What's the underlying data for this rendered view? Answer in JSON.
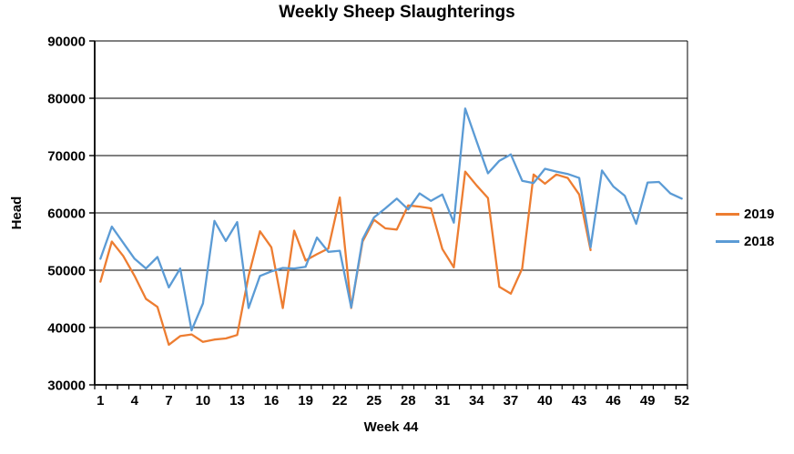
{
  "title": "Weekly Sheep Slaughterings",
  "chart_data": {
    "type": "line",
    "title": "Weekly Sheep Slaughterings",
    "xlabel": "Week 44",
    "ylabel": "Head",
    "x_unit": "week number",
    "x_range": [
      1,
      52
    ],
    "ylim": [
      30000,
      90000
    ],
    "ytick_step": 10000,
    "yticks": [
      90000,
      80000,
      70000,
      60000,
      50000,
      40000,
      30000
    ],
    "xticks": [
      1,
      4,
      7,
      10,
      13,
      16,
      19,
      22,
      25,
      28,
      31,
      34,
      37,
      40,
      43,
      46,
      49,
      52
    ],
    "grid": true,
    "legend_position": "right",
    "series": [
      {
        "name": "2019",
        "color": "#ED7D31",
        "start_week": 1,
        "values": [
          48000,
          55000,
          52500,
          49000,
          45000,
          43600,
          37000,
          38500,
          38800,
          37500,
          37900,
          38100,
          38700,
          49000,
          56800,
          54000,
          43400,
          56900,
          51700,
          52800,
          53800,
          62700,
          43400,
          55000,
          58800,
          57300,
          57100,
          61300,
          61100,
          60800,
          53700,
          50500,
          67200,
          64800,
          62600,
          47100,
          45900,
          50300,
          66700,
          65100,
          66700,
          66100,
          63200,
          53500
        ]
      },
      {
        "name": "2018",
        "color": "#5B9BD5",
        "start_week": 1,
        "values": [
          52000,
          57600,
          54800,
          52000,
          50300,
          52300,
          47000,
          50300,
          39500,
          44200,
          58600,
          55100,
          58400,
          43400,
          49000,
          49800,
          50400,
          50300,
          50600,
          55700,
          53200,
          53400,
          43500,
          55400,
          59200,
          60800,
          62500,
          60600,
          63400,
          62100,
          63200,
          58300,
          78200,
          72500,
          66900,
          69100,
          70200,
          65600,
          65200,
          67700,
          67200,
          66800,
          66100,
          54000,
          67400,
          64600,
          63000,
          58100,
          65300,
          65400,
          63400,
          62500
        ]
      }
    ]
  },
  "legend": {
    "items": [
      {
        "label": "2019",
        "color": "#ED7D31"
      },
      {
        "label": "2018",
        "color": "#5B9BD5"
      }
    ]
  },
  "axis_style": {
    "axis_color": "#000000",
    "grid_color": "#000000",
    "tick_label_size": 15
  }
}
